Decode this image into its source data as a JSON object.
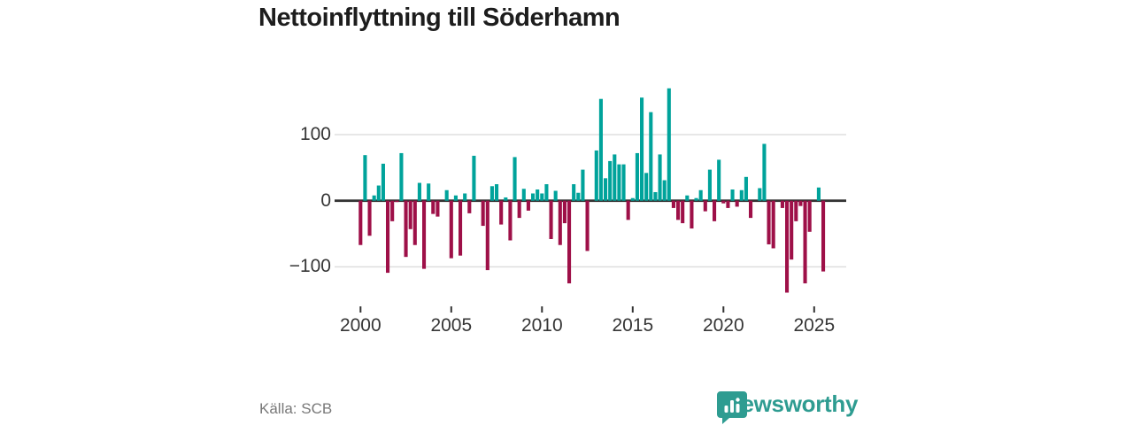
{
  "title": "Nettoinflyttning till Söderhamn",
  "source": "Källa: SCB",
  "branding": {
    "name": "Newsworthy",
    "icon": "newsworthy-speech-bubble-bars-icon",
    "color": "#2e9c91"
  },
  "colors": {
    "positive_bar": "#00a39b",
    "negative_bar": "#9e1048",
    "zero_line": "#333333",
    "gridline": "#dcdcdc",
    "axis_text": "#363636",
    "title_text": "#1d1d1d",
    "source_text": "#787878",
    "background": "#ffffff"
  },
  "chart_data": {
    "type": "bar",
    "title": "Nettoinflyttning till Söderhamn",
    "xlabel": "",
    "ylabel": "",
    "x_tick_labels": [
      "2000",
      "2005",
      "2010",
      "2015",
      "2020",
      "2025"
    ],
    "y_ticks": [
      100,
      0,
      -100
    ],
    "y_tick_labels": [
      "100",
      "0",
      "−100"
    ],
    "ylim": [
      -150,
      185
    ],
    "grid": "horizontal",
    "legend": "none",
    "series": [
      {
        "name": "Nettoinflyttning per kvartal",
        "points": [
          {
            "period": "2000-Q1",
            "value": -67
          },
          {
            "period": "2000-Q2",
            "value": 69
          },
          {
            "period": "2000-Q3",
            "value": -53
          },
          {
            "period": "2000-Q4",
            "value": 8
          },
          {
            "period": "2001-Q1",
            "value": 23
          },
          {
            "period": "2001-Q2",
            "value": 56
          },
          {
            "period": "2001-Q3",
            "value": -109
          },
          {
            "period": "2001-Q4",
            "value": -31
          },
          {
            "period": "2002-Q1",
            "value": -2
          },
          {
            "period": "2002-Q2",
            "value": 72
          },
          {
            "period": "2002-Q3",
            "value": -85
          },
          {
            "period": "2002-Q4",
            "value": -43
          },
          {
            "period": "2003-Q1",
            "value": -67
          },
          {
            "period": "2003-Q2",
            "value": 27
          },
          {
            "period": "2003-Q3",
            "value": -103
          },
          {
            "period": "2003-Q4",
            "value": 26
          },
          {
            "period": "2004-Q1",
            "value": -20
          },
          {
            "period": "2004-Q2",
            "value": -24
          },
          {
            "period": "2004-Q3",
            "value": 0
          },
          {
            "period": "2004-Q4",
            "value": 16
          },
          {
            "period": "2005-Q1",
            "value": -87
          },
          {
            "period": "2005-Q2",
            "value": 8
          },
          {
            "period": "2005-Q3",
            "value": -83
          },
          {
            "period": "2005-Q4",
            "value": 11
          },
          {
            "period": "2006-Q1",
            "value": -19
          },
          {
            "period": "2006-Q2",
            "value": 68
          },
          {
            "period": "2006-Q3",
            "value": 0
          },
          {
            "period": "2006-Q4",
            "value": -38
          },
          {
            "period": "2007-Q1",
            "value": -105
          },
          {
            "period": "2007-Q2",
            "value": 22
          },
          {
            "period": "2007-Q3",
            "value": 25
          },
          {
            "period": "2007-Q4",
            "value": -36
          },
          {
            "period": "2008-Q1",
            "value": 5
          },
          {
            "period": "2008-Q2",
            "value": -60
          },
          {
            "period": "2008-Q3",
            "value": 66
          },
          {
            "period": "2008-Q4",
            "value": -26
          },
          {
            "period": "2009-Q1",
            "value": 18
          },
          {
            "period": "2009-Q2",
            "value": -15
          },
          {
            "period": "2009-Q3",
            "value": 11
          },
          {
            "period": "2009-Q4",
            "value": 17
          },
          {
            "period": "2010-Q1",
            "value": 11
          },
          {
            "period": "2010-Q2",
            "value": 25
          },
          {
            "period": "2010-Q3",
            "value": -58
          },
          {
            "period": "2010-Q4",
            "value": 15
          },
          {
            "period": "2011-Q1",
            "value": -67
          },
          {
            "period": "2011-Q2",
            "value": -34
          },
          {
            "period": "2011-Q3",
            "value": -125
          },
          {
            "period": "2011-Q4",
            "value": 25
          },
          {
            "period": "2012-Q1",
            "value": 12
          },
          {
            "period": "2012-Q2",
            "value": 47
          },
          {
            "period": "2012-Q3",
            "value": -76
          },
          {
            "period": "2012-Q4",
            "value": 0
          },
          {
            "period": "2013-Q1",
            "value": 76
          },
          {
            "period": "2013-Q2",
            "value": 154
          },
          {
            "period": "2013-Q3",
            "value": 34
          },
          {
            "period": "2013-Q4",
            "value": 60
          },
          {
            "period": "2014-Q1",
            "value": 70
          },
          {
            "period": "2014-Q2",
            "value": 55
          },
          {
            "period": "2014-Q3",
            "value": 55
          },
          {
            "period": "2014-Q4",
            "value": -29
          },
          {
            "period": "2015-Q1",
            "value": 4
          },
          {
            "period": "2015-Q2",
            "value": 72
          },
          {
            "period": "2015-Q3",
            "value": 156
          },
          {
            "period": "2015-Q4",
            "value": 42
          },
          {
            "period": "2016-Q1",
            "value": 134
          },
          {
            "period": "2016-Q2",
            "value": 13
          },
          {
            "period": "2016-Q3",
            "value": 70
          },
          {
            "period": "2016-Q4",
            "value": 31
          },
          {
            "period": "2017-Q1",
            "value": 170
          },
          {
            "period": "2017-Q2",
            "value": -11
          },
          {
            "period": "2017-Q3",
            "value": -29
          },
          {
            "period": "2017-Q4",
            "value": -34
          },
          {
            "period": "2018-Q1",
            "value": 8
          },
          {
            "period": "2018-Q2",
            "value": -42
          },
          {
            "period": "2018-Q3",
            "value": 4
          },
          {
            "period": "2018-Q4",
            "value": 16
          },
          {
            "period": "2019-Q1",
            "value": -16
          },
          {
            "period": "2019-Q2",
            "value": 47
          },
          {
            "period": "2019-Q3",
            "value": -31
          },
          {
            "period": "2019-Q4",
            "value": 62
          },
          {
            "period": "2020-Q1",
            "value": -4
          },
          {
            "period": "2020-Q2",
            "value": -11
          },
          {
            "period": "2020-Q3",
            "value": 17
          },
          {
            "period": "2020-Q4",
            "value": -9
          },
          {
            "period": "2021-Q1",
            "value": 16
          },
          {
            "period": "2021-Q2",
            "value": 36
          },
          {
            "period": "2021-Q3",
            "value": -26
          },
          {
            "period": "2021-Q4",
            "value": 0
          },
          {
            "period": "2022-Q1",
            "value": 19
          },
          {
            "period": "2022-Q2",
            "value": 86
          },
          {
            "period": "2022-Q3",
            "value": -66
          },
          {
            "period": "2022-Q4",
            "value": -72
          },
          {
            "period": "2023-Q1",
            "value": 0
          },
          {
            "period": "2023-Q2",
            "value": -11
          },
          {
            "period": "2023-Q3",
            "value": -139
          },
          {
            "period": "2023-Q4",
            "value": -89
          },
          {
            "period": "2024-Q1",
            "value": -31
          },
          {
            "period": "2024-Q2",
            "value": -8
          },
          {
            "period": "2024-Q3",
            "value": -125
          },
          {
            "period": "2024-Q4",
            "value": -47
          },
          {
            "period": "2025-Q1",
            "value": 0
          },
          {
            "period": "2025-Q2",
            "value": 20
          },
          {
            "period": "2025-Q3",
            "value": -107
          }
        ]
      }
    ]
  }
}
